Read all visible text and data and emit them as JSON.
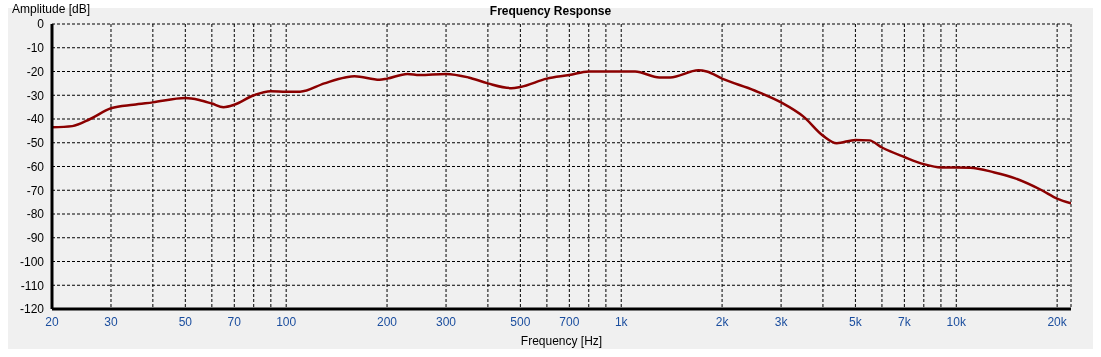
{
  "chart_data": {
    "type": "line",
    "title": "Frequency Response",
    "xlabel": "Frequency [Hz]",
    "ylabel": "Amplitude [dB]",
    "x": [
      20,
      23,
      26,
      30,
      35,
      40,
      50,
      55,
      60,
      65,
      70,
      80,
      90,
      100,
      110,
      130,
      150,
      160,
      190,
      200,
      230,
      250,
      300,
      350,
      400,
      470,
      500,
      600,
      700,
      800,
      1000,
      1100,
      1300,
      1400,
      1700,
      1800,
      2000,
      2500,
      3000,
      3500,
      4000,
      4400,
      5000,
      5500,
      6000,
      7000,
      8000,
      9000,
      11000,
      13000,
      15000,
      18000,
      20000,
      22000
    ],
    "series": [
      {
        "color": "#8b0000",
        "values": [
          -43.5,
          -43,
          -40,
          -35.5,
          -34,
          -33,
          -31.2,
          -32,
          -33.5,
          -35,
          -34,
          -30,
          -28.3,
          -28.5,
          -28.5,
          -25,
          -22.5,
          -22,
          -23.5,
          -23,
          -21,
          -21.5,
          -21,
          -22.5,
          -25,
          -27,
          -26.5,
          -23,
          -21.5,
          -20,
          -20,
          -20,
          -22.5,
          -22.5,
          -19.5,
          -20,
          -23,
          -28,
          -33,
          -39,
          -47,
          -50.2,
          -48.8,
          -49,
          -52,
          -56,
          -59,
          -60.4,
          -60.5,
          -62.5,
          -65,
          -70,
          -73.5,
          -75.5
        ]
      }
    ],
    "log": "x",
    "xlim": [
      20,
      22000
    ],
    "xticks": [
      20,
      30,
      {
        "value": 40,
        "label": null
      },
      50,
      {
        "value": 60,
        "label": null
      },
      70,
      {
        "value": 80,
        "label": null
      },
      {
        "value": 90,
        "label": null
      },
      100,
      200,
      300,
      {
        "value": 400,
        "label": null
      },
      500,
      {
        "value": 600,
        "label": null
      },
      700,
      {
        "value": 800,
        "label": null
      },
      {
        "value": 900,
        "label": null
      },
      {
        "value": 1000,
        "label": "1k"
      },
      {
        "value": 2000,
        "label": "2k"
      },
      {
        "value": 3000,
        "label": "3k"
      },
      {
        "value": 4000,
        "label": null
      },
      {
        "value": 5000,
        "label": "5k"
      },
      {
        "value": 6000,
        "label": null
      },
      {
        "value": 7000,
        "label": "7k"
      },
      {
        "value": 8000,
        "label": null
      },
      {
        "value": 9000,
        "label": null
      },
      {
        "value": 10000,
        "label": "10k"
      },
      {
        "value": 20000,
        "label": "20k"
      }
    ],
    "ylim": [
      -120,
      0
    ],
    "yticks": [
      -120,
      -110,
      -100,
      -90,
      -80,
      -70,
      -60,
      -50,
      -40,
      -30,
      -20,
      -10,
      0
    ],
    "grid": true,
    "line_style": "solid",
    "marker": "none",
    "legend": false
  }
}
